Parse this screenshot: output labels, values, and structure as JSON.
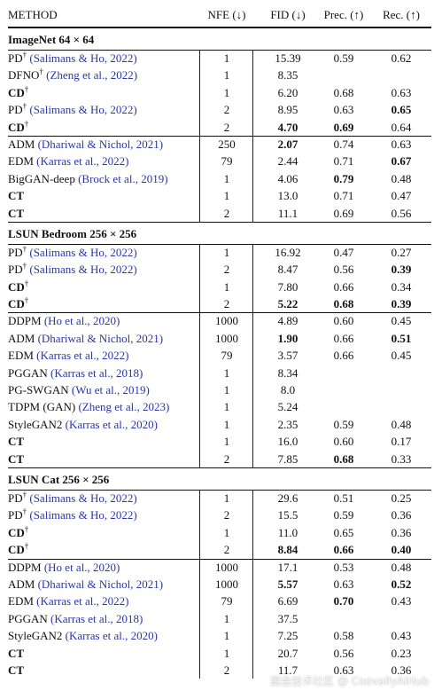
{
  "header": {
    "method": "METHOD",
    "nfe": "NFE (↓)",
    "fid": "FID (↓)",
    "prec": "Prec. (↑)",
    "rec": "Rec. (↑)"
  },
  "sections": [
    {
      "title": "ImageNet 64 × 64",
      "groups": [
        [
          {
            "name": "PD",
            "dagger": true,
            "bold_name": false,
            "cite": "(Salimans & Ho, 2022)",
            "nfe": "1",
            "fid": "15.39",
            "prec": "0.59",
            "rec": "0.62",
            "bold": []
          },
          {
            "name": "DFNO",
            "dagger": true,
            "bold_name": false,
            "cite": "(Zheng et al., 2022)",
            "nfe": "1",
            "fid": "8.35",
            "prec": "",
            "rec": "",
            "bold": []
          },
          {
            "name": "CD",
            "dagger": true,
            "bold_name": true,
            "cite": "",
            "nfe": "1",
            "fid": "6.20",
            "prec": "0.68",
            "rec": "0.63",
            "bold": []
          },
          {
            "name": "PD",
            "dagger": true,
            "bold_name": false,
            "cite": "(Salimans & Ho, 2022)",
            "nfe": "2",
            "fid": "8.95",
            "prec": "0.63",
            "rec": "0.65",
            "bold": [
              "rec"
            ]
          },
          {
            "name": "CD",
            "dagger": true,
            "bold_name": true,
            "cite": "",
            "nfe": "2",
            "fid": "4.70",
            "prec": "0.69",
            "rec": "0.64",
            "bold": [
              "fid",
              "prec"
            ]
          }
        ],
        [
          {
            "name": "ADM",
            "dagger": false,
            "bold_name": false,
            "cite": "(Dhariwal & Nichol, 2021)",
            "nfe": "250",
            "fid": "2.07",
            "prec": "0.74",
            "rec": "0.63",
            "bold": [
              "fid"
            ]
          },
          {
            "name": "EDM",
            "dagger": false,
            "bold_name": false,
            "cite": "(Karras et al., 2022)",
            "nfe": "79",
            "fid": "2.44",
            "prec": "0.71",
            "rec": "0.67",
            "bold": [
              "rec"
            ]
          },
          {
            "name": "BigGAN-deep",
            "dagger": false,
            "bold_name": false,
            "cite": "(Brock et al., 2019)",
            "nfe": "1",
            "fid": "4.06",
            "prec": "0.79",
            "rec": "0.48",
            "bold": [
              "prec"
            ]
          },
          {
            "name": "CT",
            "dagger": false,
            "bold_name": true,
            "cite": "",
            "nfe": "1",
            "fid": "13.0",
            "prec": "0.71",
            "rec": "0.47",
            "bold": []
          },
          {
            "name": "CT",
            "dagger": false,
            "bold_name": true,
            "cite": "",
            "nfe": "2",
            "fid": "11.1",
            "prec": "0.69",
            "rec": "0.56",
            "bold": []
          }
        ]
      ]
    },
    {
      "title": "LSUN Bedroom 256 × 256",
      "groups": [
        [
          {
            "name": "PD",
            "dagger": true,
            "bold_name": false,
            "cite": "(Salimans & Ho, 2022)",
            "nfe": "1",
            "fid": "16.92",
            "prec": "0.47",
            "rec": "0.27",
            "bold": []
          },
          {
            "name": "PD",
            "dagger": true,
            "bold_name": false,
            "cite": "(Salimans & Ho, 2022)",
            "nfe": "2",
            "fid": "8.47",
            "prec": "0.56",
            "rec": "0.39",
            "bold": [
              "rec"
            ]
          },
          {
            "name": "CD",
            "dagger": true,
            "bold_name": true,
            "cite": "",
            "nfe": "1",
            "fid": "7.80",
            "prec": "0.66",
            "rec": "0.34",
            "bold": []
          },
          {
            "name": "CD",
            "dagger": true,
            "bold_name": true,
            "cite": "",
            "nfe": "2",
            "fid": "5.22",
            "prec": "0.68",
            "rec": "0.39",
            "bold": [
              "fid",
              "prec",
              "rec"
            ]
          }
        ],
        [
          {
            "name": "DDPM",
            "dagger": false,
            "bold_name": false,
            "cite": "(Ho et al., 2020)",
            "nfe": "1000",
            "fid": "4.89",
            "prec": "0.60",
            "rec": "0.45",
            "bold": []
          },
          {
            "name": "ADM",
            "dagger": false,
            "bold_name": false,
            "cite": "(Dhariwal & Nichol, 2021)",
            "nfe": "1000",
            "fid": "1.90",
            "prec": "0.66",
            "rec": "0.51",
            "bold": [
              "fid",
              "rec"
            ]
          },
          {
            "name": "EDM",
            "dagger": false,
            "bold_name": false,
            "cite": "(Karras et al., 2022)",
            "nfe": "79",
            "fid": "3.57",
            "prec": "0.66",
            "rec": "0.45",
            "bold": []
          },
          {
            "name": "PGGAN",
            "dagger": false,
            "bold_name": false,
            "cite": "(Karras et al., 2018)",
            "nfe": "1",
            "fid": "8.34",
            "prec": "",
            "rec": "",
            "bold": []
          },
          {
            "name": "PG-SWGAN",
            "dagger": false,
            "bold_name": false,
            "cite": "(Wu et al., 2019)",
            "nfe": "1",
            "fid": "8.0",
            "prec": "",
            "rec": "",
            "bold": []
          },
          {
            "name": "TDPM (GAN)",
            "dagger": false,
            "bold_name": false,
            "cite": "(Zheng et al., 2023)",
            "nfe": "1",
            "fid": "5.24",
            "prec": "",
            "rec": "",
            "bold": []
          },
          {
            "name": "StyleGAN2",
            "dagger": false,
            "bold_name": false,
            "cite": "(Karras et al., 2020)",
            "nfe": "1",
            "fid": "2.35",
            "prec": "0.59",
            "rec": "0.48",
            "bold": []
          },
          {
            "name": "CT",
            "dagger": false,
            "bold_name": true,
            "cite": "",
            "nfe": "1",
            "fid": "16.0",
            "prec": "0.60",
            "rec": "0.17",
            "bold": []
          },
          {
            "name": "CT",
            "dagger": false,
            "bold_name": true,
            "cite": "",
            "nfe": "2",
            "fid": "7.85",
            "prec": "0.68",
            "rec": "0.33",
            "bold": [
              "prec"
            ]
          }
        ]
      ]
    },
    {
      "title": "LSUN Cat 256 × 256",
      "groups": [
        [
          {
            "name": "PD",
            "dagger": true,
            "bold_name": false,
            "cite": "(Salimans & Ho, 2022)",
            "nfe": "1",
            "fid": "29.6",
            "prec": "0.51",
            "rec": "0.25",
            "bold": []
          },
          {
            "name": "PD",
            "dagger": true,
            "bold_name": false,
            "cite": "(Salimans & Ho, 2022)",
            "nfe": "2",
            "fid": "15.5",
            "prec": "0.59",
            "rec": "0.36",
            "bold": []
          },
          {
            "name": "CD",
            "dagger": true,
            "bold_name": true,
            "cite": "",
            "nfe": "1",
            "fid": "11.0",
            "prec": "0.65",
            "rec": "0.36",
            "bold": []
          },
          {
            "name": "CD",
            "dagger": true,
            "bold_name": true,
            "cite": "",
            "nfe": "2",
            "fid": "8.84",
            "prec": "0.66",
            "rec": "0.40",
            "bold": [
              "fid",
              "prec",
              "rec"
            ]
          }
        ],
        [
          {
            "name": "DDPM",
            "dagger": false,
            "bold_name": false,
            "cite": "(Ho et al., 2020)",
            "nfe": "1000",
            "fid": "17.1",
            "prec": "0.53",
            "rec": "0.48",
            "bold": []
          },
          {
            "name": "ADM",
            "dagger": false,
            "bold_name": false,
            "cite": "(Dhariwal & Nichol, 2021)",
            "nfe": "1000",
            "fid": "5.57",
            "prec": "0.63",
            "rec": "0.52",
            "bold": [
              "fid",
              "rec"
            ]
          },
          {
            "name": "EDM",
            "dagger": false,
            "bold_name": false,
            "cite": "(Karras et al., 2022)",
            "nfe": "79",
            "fid": "6.69",
            "prec": "0.70",
            "rec": "0.43",
            "bold": [
              "prec"
            ]
          },
          {
            "name": "PGGAN",
            "dagger": false,
            "bold_name": false,
            "cite": "(Karras et al., 2018)",
            "nfe": "1",
            "fid": "37.5",
            "prec": "",
            "rec": "",
            "bold": []
          },
          {
            "name": "StyleGAN2",
            "dagger": false,
            "bold_name": false,
            "cite": "(Karras et al., 2020)",
            "nfe": "1",
            "fid": "7.25",
            "prec": "0.58",
            "rec": "0.43",
            "bold": []
          },
          {
            "name": "CT",
            "dagger": false,
            "bold_name": true,
            "cite": "",
            "nfe": "1",
            "fid": "20.7",
            "prec": "0.56",
            "rec": "0.23",
            "bold": []
          },
          {
            "name": "CT",
            "dagger": false,
            "bold_name": true,
            "cite": "",
            "nfe": "2",
            "fid": "11.7",
            "prec": "0.63",
            "rec": "0.36",
            "bold": []
          }
        ]
      ]
    }
  ],
  "watermark": "掘金技术社区 @ CoovallyAIHub"
}
